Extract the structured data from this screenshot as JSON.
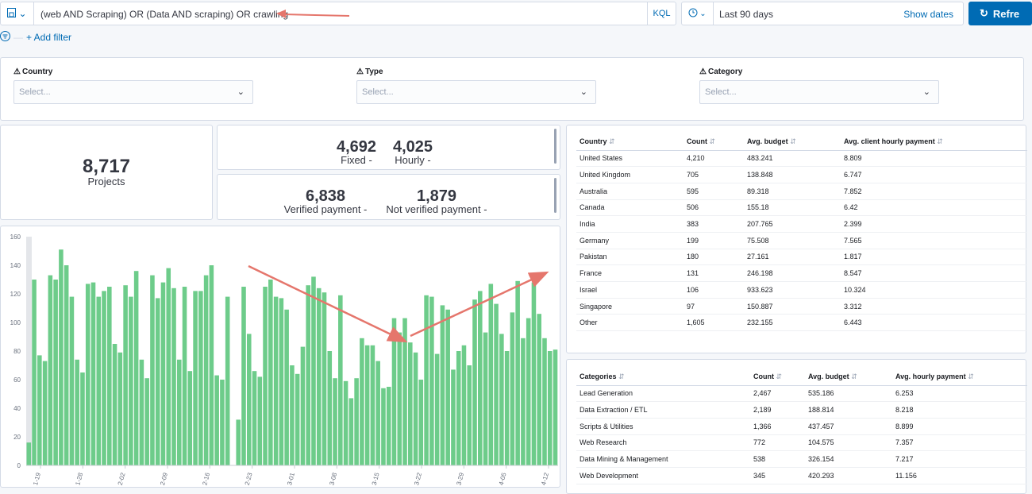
{
  "query": {
    "text": "(web AND Scraping)  OR (Data AND scraping) OR crawling",
    "language": "KQL"
  },
  "time": {
    "range": "Last 90 days",
    "show_dates": "Show dates"
  },
  "refresh_label": "Refre",
  "add_filter": "+ Add filter",
  "controls": [
    {
      "label": "Country",
      "placeholder": "Select..."
    },
    {
      "label": "Type",
      "placeholder": "Select..."
    },
    {
      "label": "Category",
      "placeholder": "Select..."
    }
  ],
  "metrics": {
    "projects": {
      "value": "8,717",
      "label": "Projects"
    },
    "fixed": {
      "value": "4,692",
      "label": "Fixed -"
    },
    "hourly": {
      "value": "4,025",
      "label": "Hourly -"
    },
    "verified": {
      "value": "6,838",
      "label": "Verified payment -"
    },
    "not_verified": {
      "value": "1,879",
      "label": "Not verified payment -"
    }
  },
  "country_table": {
    "headers": [
      "Country",
      "Count",
      "Avg. budget",
      "Avg. client hourly payment"
    ],
    "rows": [
      [
        "United States",
        "4,210",
        "483.241",
        "8.809"
      ],
      [
        "United Kingdom",
        "705",
        "138.848",
        "6.747"
      ],
      [
        "Australia",
        "595",
        "89.318",
        "7.852"
      ],
      [
        "Canada",
        "506",
        "155.18",
        "6.42"
      ],
      [
        "India",
        "383",
        "207.765",
        "2.399"
      ],
      [
        "Germany",
        "199",
        "75.508",
        "7.565"
      ],
      [
        "Pakistan",
        "180",
        "27.161",
        "1.817"
      ],
      [
        "France",
        "131",
        "246.198",
        "8.547"
      ],
      [
        "Israel",
        "106",
        "933.623",
        "10.324"
      ],
      [
        "Singapore",
        "97",
        "150.887",
        "3.312"
      ],
      [
        "Other",
        "1,605",
        "232.155",
        "6.443"
      ]
    ]
  },
  "category_table": {
    "headers": [
      "Categories",
      "Count",
      "Avg. budget",
      "Avg. hourly payment"
    ],
    "rows": [
      [
        "Lead Generation",
        "2,467",
        "535.186",
        "6.253"
      ],
      [
        "Data Extraction / ETL",
        "2,189",
        "188.814",
        "8.218"
      ],
      [
        "Scripts & Utilities",
        "1,366",
        "437.457",
        "8.899"
      ],
      [
        "Web Research",
        "772",
        "104.575",
        "7.357"
      ],
      [
        "Data Mining & Management",
        "538",
        "326.154",
        "7.217"
      ],
      [
        "Web Development",
        "345",
        "420.293",
        "11.156"
      ]
    ]
  },
  "chart_data": {
    "type": "bar",
    "ylim": [
      0,
      160
    ],
    "yticks": [
      0,
      20,
      40,
      60,
      80,
      100,
      120,
      140,
      160
    ],
    "xtick_labels": [
      "1-19",
      "1-28",
      "2-02",
      "2-09",
      "2-16",
      "2-23",
      "3-01",
      "3-08",
      "3-15",
      "3-22",
      "3-29",
      "4-05",
      "4-12"
    ],
    "color": "#6dcc8a",
    "values": [
      16,
      130,
      77,
      73,
      133,
      130,
      151,
      140,
      118,
      74,
      65,
      127,
      128,
      118,
      122,
      125,
      85,
      79,
      126,
      118,
      136,
      74,
      61,
      133,
      117,
      128,
      138,
      124,
      74,
      125,
      66,
      122,
      122,
      133,
      140,
      63,
      60,
      118,
      0,
      32,
      125,
      92,
      66,
      62,
      125,
      130,
      118,
      117,
      109,
      70,
      64,
      83,
      126,
      132,
      124,
      121,
      80,
      61,
      119,
      59,
      47,
      61,
      89,
      84,
      84,
      73,
      54,
      55,
      103,
      93,
      103,
      86,
      79,
      60,
      119,
      118,
      78,
      112,
      109,
      67,
      80,
      84,
      70,
      116,
      122,
      93,
      127,
      113,
      92,
      80,
      107,
      129,
      89,
      103,
      128,
      106,
      89,
      80,
      81
    ]
  }
}
